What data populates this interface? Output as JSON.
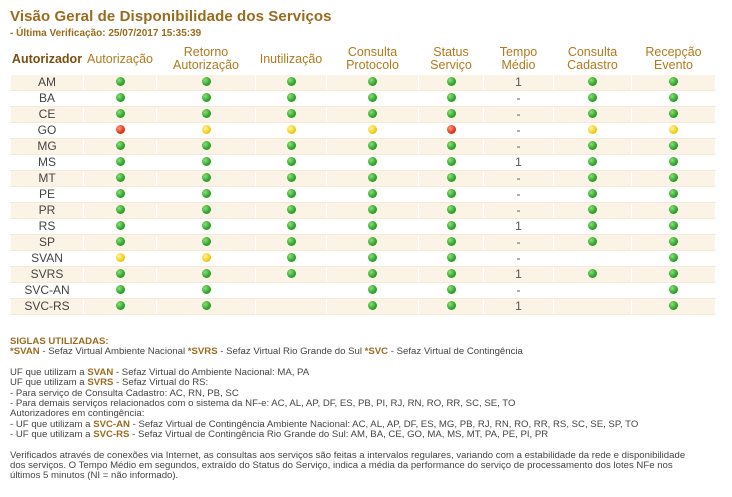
{
  "page": {
    "title": "Visão Geral de Disponibilidade dos Serviços",
    "subtitle": "- Última Verificação: 25/07/2017 15:35:39"
  },
  "colors": {
    "verde": "#33a82d",
    "amarelo": "#f2d21e",
    "vermelho": "#e23a1a",
    "header_text": "#b07a1e",
    "row_stripe": "#fbf3e5"
  },
  "status_legend": {
    "verde": "green-status-icon",
    "amarelo": "yellow-status-icon",
    "vermelho": "red-status-icon"
  },
  "table": {
    "headers": [
      "Autorizador",
      "Autorização",
      "Retorno\nAutorização",
      "Inutilização",
      "Consulta\nProtocolo",
      "Status\nServiço",
      "Tempo\nMédio",
      "Consulta\nCadastro",
      "Recepção\nEvento"
    ],
    "rows": [
      {
        "name": "AM",
        "cells": [
          "verde",
          "verde",
          "verde",
          "verde",
          "verde",
          "1",
          "verde",
          "verde"
        ]
      },
      {
        "name": "BA",
        "cells": [
          "verde",
          "verde",
          "verde",
          "verde",
          "verde",
          "-",
          "verde",
          "verde"
        ]
      },
      {
        "name": "CE",
        "cells": [
          "verde",
          "verde",
          "verde",
          "verde",
          "verde",
          "-",
          "verde",
          "verde"
        ]
      },
      {
        "name": "GO",
        "cells": [
          "vermelho",
          "amarelo",
          "amarelo",
          "amarelo",
          "vermelho",
          "-",
          "amarelo",
          "amarelo"
        ]
      },
      {
        "name": "MG",
        "cells": [
          "verde",
          "verde",
          "verde",
          "verde",
          "verde",
          "-",
          "verde",
          "verde"
        ]
      },
      {
        "name": "MS",
        "cells": [
          "verde",
          "verde",
          "verde",
          "verde",
          "verde",
          "1",
          "verde",
          "verde"
        ]
      },
      {
        "name": "MT",
        "cells": [
          "verde",
          "verde",
          "verde",
          "verde",
          "verde",
          "-",
          "verde",
          "verde"
        ]
      },
      {
        "name": "PE",
        "cells": [
          "verde",
          "verde",
          "verde",
          "verde",
          "verde",
          "-",
          "verde",
          "verde"
        ]
      },
      {
        "name": "PR",
        "cells": [
          "verde",
          "verde",
          "verde",
          "verde",
          "verde",
          "-",
          "verde",
          "verde"
        ]
      },
      {
        "name": "RS",
        "cells": [
          "verde",
          "verde",
          "verde",
          "verde",
          "verde",
          "1",
          "verde",
          "verde"
        ]
      },
      {
        "name": "SP",
        "cells": [
          "verde",
          "verde",
          "verde",
          "verde",
          "verde",
          "-",
          "verde",
          "verde"
        ]
      },
      {
        "name": "SVAN",
        "cells": [
          "amarelo",
          "amarelo",
          "verde",
          "verde",
          "verde",
          "-",
          "",
          "verde"
        ]
      },
      {
        "name": "SVRS",
        "cells": [
          "verde",
          "verde",
          "verde",
          "verde",
          "verde",
          "1",
          "verde",
          "verde"
        ]
      },
      {
        "name": "SVC-AN",
        "cells": [
          "verde",
          "verde",
          "",
          "verde",
          "verde",
          "-",
          "",
          "verde"
        ]
      },
      {
        "name": "SVC-RS",
        "cells": [
          "verde",
          "verde",
          "",
          "verde",
          "verde",
          "1",
          "",
          "verde"
        ]
      }
    ]
  },
  "footer": {
    "siglas_title": "SIGLAS UTILIZADAS:",
    "siglas": [
      {
        "code": "*SVAN",
        "desc": " - Sefaz Virtual Ambiente Nacional "
      },
      {
        "code": "*SVRS",
        "desc": " - Sefaz Virtual Rio Grande do Sul "
      },
      {
        "code": "*SVC",
        "desc": " - Sefaz Virtual de Contingência"
      }
    ],
    "uf_svan": {
      "pre": "UF que utilizam a ",
      "code": "SVAN",
      "post": " - Sefaz Virtual do Ambiente Nacional: MA, PA"
    },
    "uf_svrs": {
      "pre": "UF que utilizam a ",
      "code": "SVRS",
      "post": " - Sefaz Virtual do RS:"
    },
    "svrs_cadastro": "- Para serviço de Consulta Cadastro: AC, RN, PB, SC",
    "svrs_demais": "- Para demais serviços relacionados com o sistema da NF-e: AC, AL, AP, DF, ES, PB, PI, RJ, RN, RO, RR, SC, SE, TO",
    "contingencia_title": "Autorizadores em contingência:",
    "svc_an": {
      "pre": "- UF que utilizam a ",
      "code": "SVC-AN",
      "post": " - Sefaz Virtual de Contingência Ambiente Nacional: AC, AL, AP, DF, ES, MG, PB, RJ, RN, RO, RR, RS, SC, SE, SP, TO"
    },
    "svc_rs": {
      "pre": "- UF que utilizam a ",
      "code": "SVC-RS",
      "post": " - Sefaz Virtual de Contingência Rio Grande do Sul: AM, BA, CE, GO, MA, MS, MT, PA, PE, PI, PR"
    },
    "note_1": "Verificados através de conexões via Internet, as consultas aos serviços são feitas a intervalos regulares, variando com a estabilidade da rede e disponibilidade",
    "note_2": "dos serviços. O Tempo Médio em segundos, extraído do Status do Serviço, indica a média da performance do serviço de processamento dos lotes NFe nos",
    "note_3": "últimos 5 minutos (NI = não informado)."
  }
}
